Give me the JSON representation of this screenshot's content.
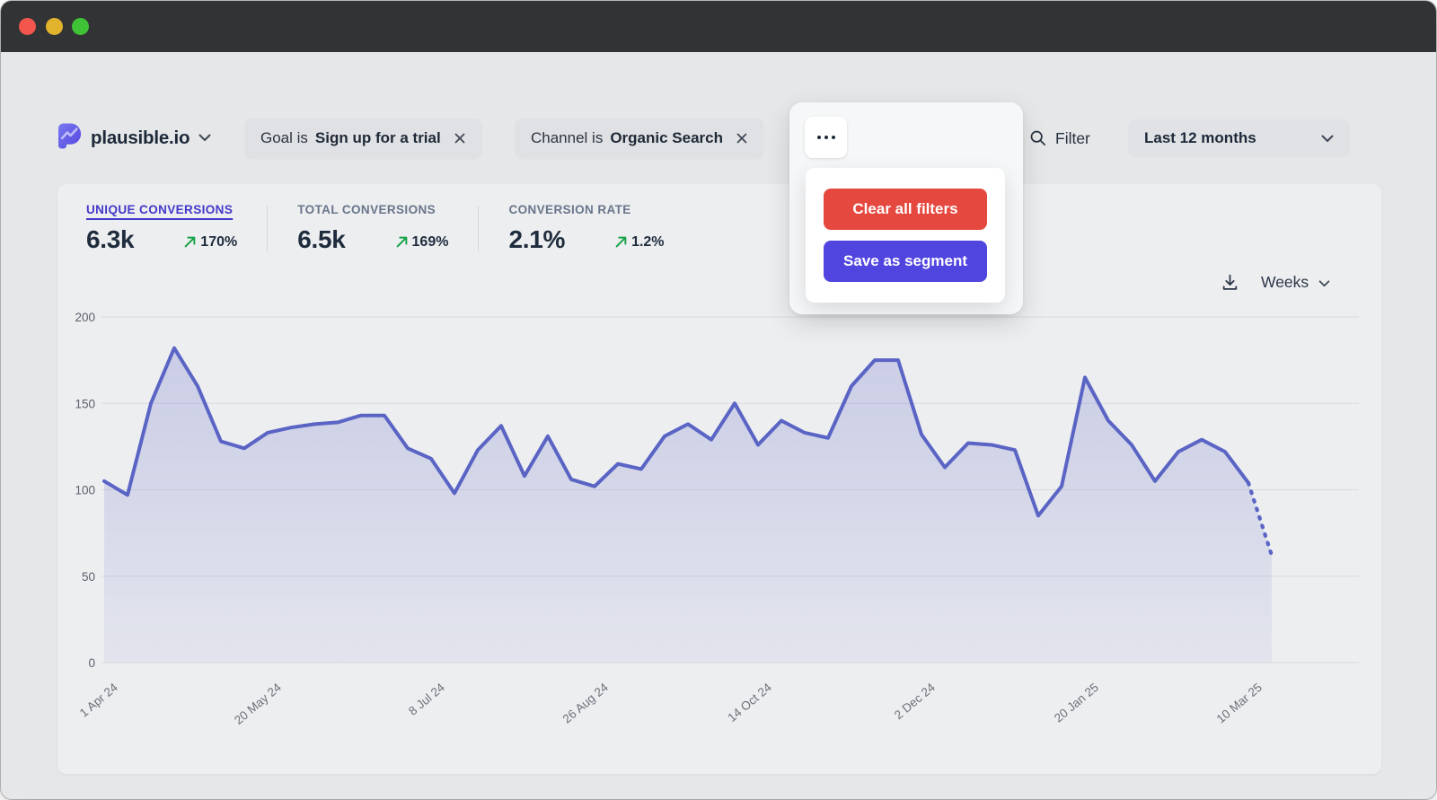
{
  "window": {
    "traffic_lights": [
      "close",
      "minimize",
      "zoom"
    ]
  },
  "header": {
    "site_name": "plausible.io",
    "filters": [
      {
        "prefix": "Goal is",
        "value": "Sign up for a trial"
      },
      {
        "prefix": "Channel is",
        "value": "Organic Search"
      }
    ],
    "filter_label": "Filter",
    "date_range": "Last 12 months"
  },
  "popover": {
    "clear_label": "Clear all filters",
    "save_label": "Save as segment"
  },
  "metrics": [
    {
      "label": "UNIQUE CONVERSIONS",
      "value": "6.3k",
      "change": "170%"
    },
    {
      "label": "TOTAL CONVERSIONS",
      "value": "6.5k",
      "change": "169%"
    },
    {
      "label": "CONVERSION RATE",
      "value": "2.1%",
      "change": "1.2%"
    }
  ],
  "chart_controls": {
    "interval": "Weeks"
  },
  "chart_data": {
    "type": "area",
    "title": "Unique conversions by week",
    "x_tick_labels": [
      "1 Apr 24",
      "20 May 24",
      "8 Jul 24",
      "26 Aug 24",
      "14 Oct 24",
      "2 Dec 24",
      "20 Jan 25",
      "10 Mar 25"
    ],
    "x_tick_indices": [
      0,
      7,
      14,
      21,
      28,
      35,
      42,
      49
    ],
    "values": [
      105,
      97,
      150,
      182,
      160,
      128,
      124,
      133,
      136,
      138,
      139,
      143,
      143,
      124,
      118,
      98,
      123,
      137,
      108,
      131,
      106,
      102,
      115,
      112,
      131,
      138,
      129,
      150,
      126,
      140,
      133,
      130,
      160,
      175,
      175,
      132,
      113,
      127,
      126,
      123,
      85,
      102,
      165,
      140,
      126,
      105,
      122,
      129,
      122,
      104,
      62
    ],
    "dashed_tail_points": 1,
    "ylim": [
      0,
      200
    ],
    "y_ticks": [
      0,
      50,
      100,
      150,
      200
    ],
    "grid": true,
    "legend": "none",
    "line_color": "#5a64c4",
    "fill_color": "#5a64c4",
    "grid_color": "#d9dade",
    "axis_text_color": "#5a616b"
  },
  "colors": {
    "accent_indigo": "#4338c9",
    "button_red": "#e5483f",
    "button_indigo": "#5145e0",
    "positive_green": "#18a34a"
  }
}
